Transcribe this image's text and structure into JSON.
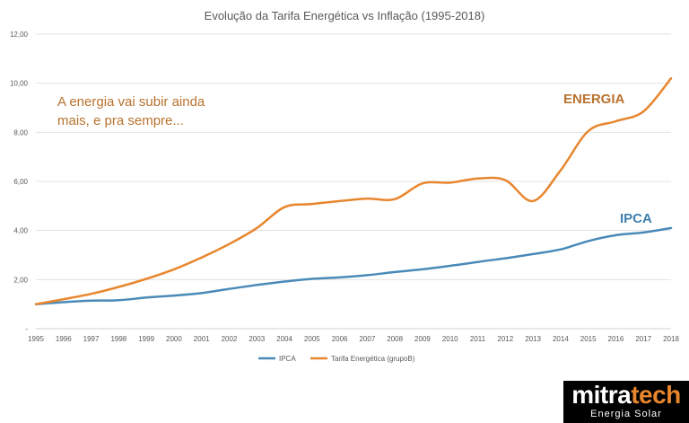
{
  "chart_data": {
    "type": "line",
    "title": "Evolução da Tarifa Energética vs Inflação (1995-2018)",
    "x": [
      "1995",
      "1996",
      "1997",
      "1998",
      "1999",
      "2000",
      "2001",
      "2002",
      "2003",
      "2004",
      "2005",
      "2006",
      "2007",
      "2008",
      "2009",
      "2010",
      "2011",
      "2012",
      "2013",
      "2014",
      "2015",
      "2016",
      "2017",
      "2018"
    ],
    "y_ticks": [
      "-",
      "2,00",
      "4,00",
      "6,00",
      "8,00",
      "10,00",
      "12,00"
    ],
    "ylim": [
      0,
      12
    ],
    "grid": true,
    "legend_position": "bottom",
    "series": [
      {
        "name": "IPCA",
        "color": "#4a8ab8",
        "values": [
          1.0,
          1.08,
          1.14,
          1.16,
          1.27,
          1.35,
          1.45,
          1.62,
          1.78,
          1.92,
          2.03,
          2.09,
          2.18,
          2.31,
          2.42,
          2.56,
          2.72,
          2.87,
          3.04,
          3.23,
          3.57,
          3.81,
          3.92,
          4.1
        ]
      },
      {
        "name": "Tarifa Energética (grupoB)",
        "color": "#e8862e",
        "values": [
          1.0,
          1.2,
          1.42,
          1.7,
          2.03,
          2.42,
          2.9,
          3.45,
          4.1,
          4.95,
          5.08,
          5.2,
          5.3,
          5.28,
          5.92,
          5.95,
          6.12,
          6.05,
          5.2,
          6.45,
          8.05,
          8.45,
          8.85,
          10.2
        ]
      }
    ],
    "annotations": {
      "main_text_line1": "A energia vai subir ainda",
      "main_text_line2": "mais, e pra sempre...",
      "energia_label": "ENERGIA",
      "ipca_label": "IPCA"
    }
  },
  "logo": {
    "brand_white": "mitra",
    "brand_orange": "tech",
    "subtitle": "Energia Solar"
  }
}
